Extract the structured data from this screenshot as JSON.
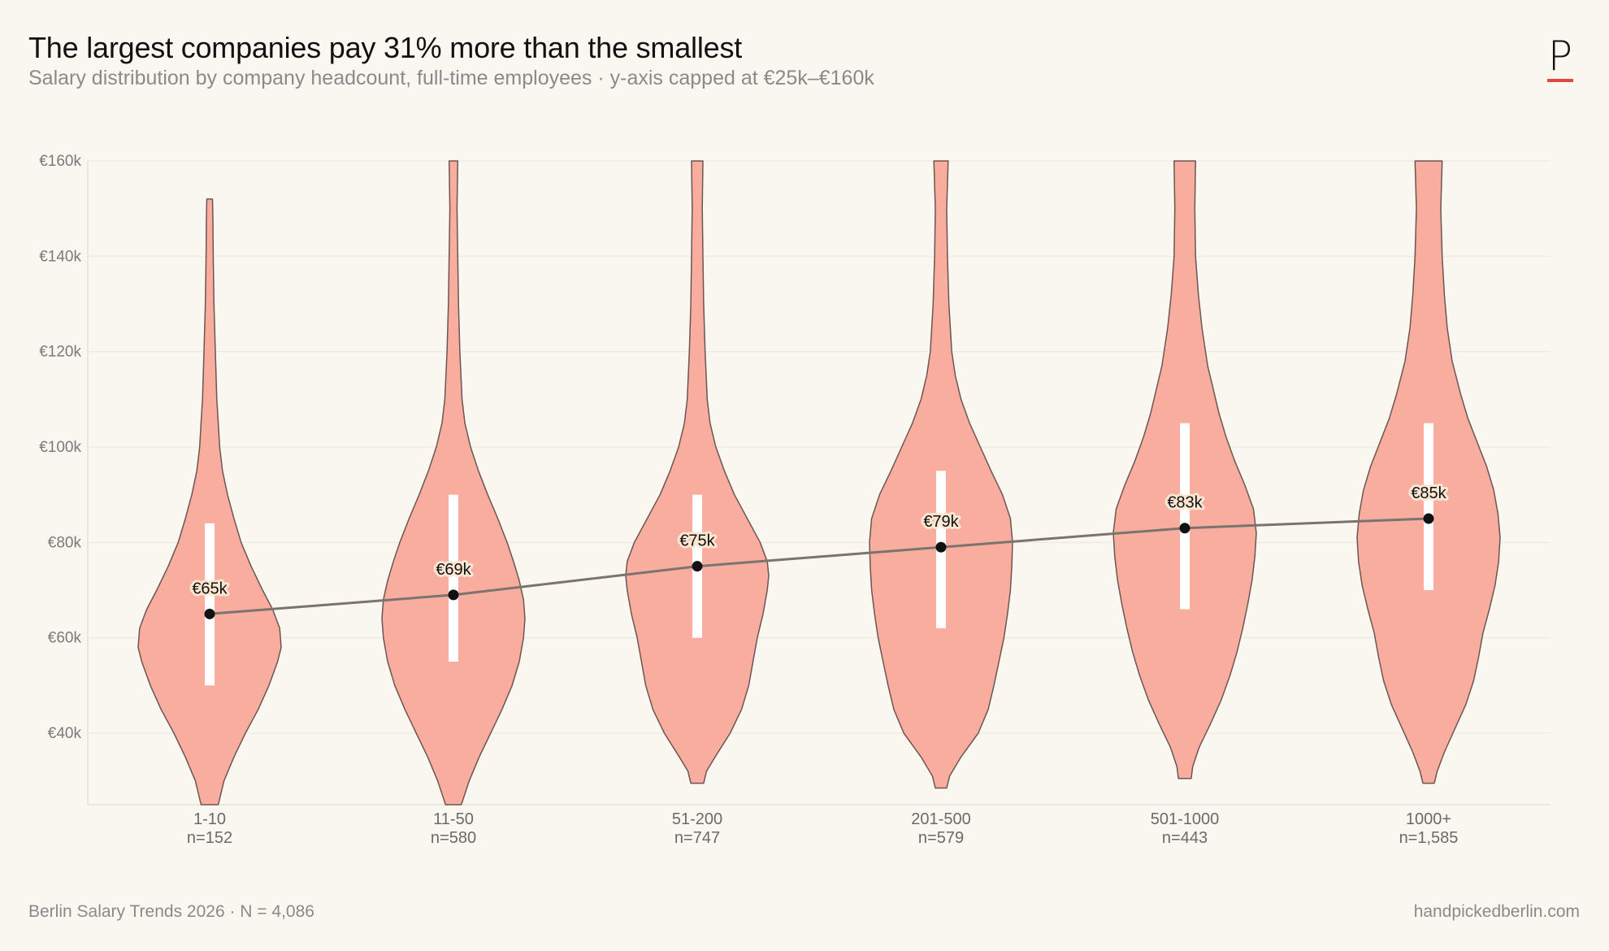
{
  "header": {
    "title": "The largest companies pay 31% more than the smallest",
    "subtitle": "Salary distribution by company headcount, full-time employees  ·  y-axis capped at €25k–€160k",
    "logo_letter": "P"
  },
  "footer": {
    "left": "Berlin Salary Trends 2026  ·  N = 4,086",
    "right": "handpickedberlin.com"
  },
  "colors": {
    "background": "#faf7f1",
    "violin_fill": "#f9ad9f",
    "violin_stroke": "#6b5652",
    "iqr_bar": "#ffffff",
    "median_dot": "#111111",
    "trend_line": "#7a7370",
    "grid": "#ebe6de",
    "accent": "#e04a3a"
  },
  "chart_data": {
    "type": "violin",
    "ylim": [
      25,
      160
    ],
    "ytick_values": [
      40,
      60,
      80,
      100,
      120,
      140,
      160
    ],
    "ytick_labels": [
      "€40k",
      "€60k",
      "€80k",
      "€100k",
      "€120k",
      "€140k",
      "€160k"
    ],
    "grid": true,
    "categories": [
      {
        "name": "1-10",
        "n_label": "n=152",
        "median": 65,
        "median_label": "€65k",
        "iqr": [
          50,
          84
        ],
        "profile": [
          [
            25,
            0.12
          ],
          [
            30,
            0.2
          ],
          [
            35,
            0.34
          ],
          [
            40,
            0.5
          ],
          [
            45,
            0.68
          ],
          [
            50,
            0.83
          ],
          [
            55,
            0.95
          ],
          [
            58,
            1.0
          ],
          [
            62,
            0.98
          ],
          [
            66,
            0.88
          ],
          [
            70,
            0.74
          ],
          [
            75,
            0.58
          ],
          [
            80,
            0.44
          ],
          [
            85,
            0.34
          ],
          [
            90,
            0.25
          ],
          [
            95,
            0.18
          ],
          [
            100,
            0.14
          ],
          [
            105,
            0.12
          ],
          [
            110,
            0.1
          ],
          [
            120,
            0.08
          ],
          [
            130,
            0.06
          ],
          [
            140,
            0.05
          ],
          [
            148,
            0.045
          ],
          [
            152,
            0.04
          ]
        ]
      },
      {
        "name": "11-50",
        "n_label": "n=580",
        "median": 69,
        "median_label": "€69k",
        "iqr": [
          55,
          90
        ],
        "profile": [
          [
            25,
            0.11
          ],
          [
            30,
            0.22
          ],
          [
            35,
            0.36
          ],
          [
            40,
            0.52
          ],
          [
            45,
            0.68
          ],
          [
            50,
            0.82
          ],
          [
            55,
            0.92
          ],
          [
            60,
            0.98
          ],
          [
            64,
            1.0
          ],
          [
            68,
            0.98
          ],
          [
            72,
            0.92
          ],
          [
            76,
            0.84
          ],
          [
            80,
            0.75
          ],
          [
            85,
            0.62
          ],
          [
            90,
            0.48
          ],
          [
            95,
            0.35
          ],
          [
            100,
            0.24
          ],
          [
            105,
            0.16
          ],
          [
            110,
            0.12
          ],
          [
            120,
            0.09
          ],
          [
            130,
            0.07
          ],
          [
            140,
            0.06
          ],
          [
            150,
            0.05
          ],
          [
            160,
            0.06
          ]
        ]
      },
      {
        "name": "51-200",
        "n_label": "n=747",
        "median": 75,
        "median_label": "€75k",
        "iqr": [
          60,
          90
        ],
        "profile": [
          [
            29.5,
            0.09
          ],
          [
            32,
            0.13
          ],
          [
            35,
            0.25
          ],
          [
            40,
            0.46
          ],
          [
            45,
            0.62
          ],
          [
            50,
            0.72
          ],
          [
            55,
            0.78
          ],
          [
            60,
            0.84
          ],
          [
            65,
            0.92
          ],
          [
            70,
            0.98
          ],
          [
            73,
            1.0
          ],
          [
            76,
            0.98
          ],
          [
            80,
            0.88
          ],
          [
            85,
            0.7
          ],
          [
            90,
            0.52
          ],
          [
            95,
            0.38
          ],
          [
            100,
            0.26
          ],
          [
            105,
            0.18
          ],
          [
            110,
            0.14
          ],
          [
            120,
            0.11
          ],
          [
            130,
            0.09
          ],
          [
            140,
            0.08
          ],
          [
            150,
            0.07
          ],
          [
            160,
            0.08
          ]
        ]
      },
      {
        "name": "201-500",
        "n_label": "n=579",
        "median": 79,
        "median_label": "€79k",
        "iqr": [
          62,
          95
        ],
        "profile": [
          [
            28.5,
            0.08
          ],
          [
            31,
            0.12
          ],
          [
            35,
            0.28
          ],
          [
            40,
            0.52
          ],
          [
            45,
            0.66
          ],
          [
            50,
            0.74
          ],
          [
            55,
            0.81
          ],
          [
            60,
            0.88
          ],
          [
            65,
            0.93
          ],
          [
            70,
            0.97
          ],
          [
            75,
            0.99
          ],
          [
            80,
            1.0
          ],
          [
            85,
            0.97
          ],
          [
            90,
            0.86
          ],
          [
            95,
            0.7
          ],
          [
            100,
            0.55
          ],
          [
            105,
            0.4
          ],
          [
            110,
            0.28
          ],
          [
            115,
            0.2
          ],
          [
            120,
            0.15
          ],
          [
            130,
            0.11
          ],
          [
            140,
            0.09
          ],
          [
            150,
            0.08
          ],
          [
            160,
            0.1
          ]
        ]
      },
      {
        "name": "501-1000",
        "n_label": "n=443",
        "median": 83,
        "median_label": "€83k",
        "iqr": [
          66,
          105
        ],
        "profile": [
          [
            30.5,
            0.09
          ],
          [
            33,
            0.11
          ],
          [
            37,
            0.2
          ],
          [
            42,
            0.36
          ],
          [
            47,
            0.51
          ],
          [
            52,
            0.63
          ],
          [
            57,
            0.73
          ],
          [
            62,
            0.81
          ],
          [
            67,
            0.88
          ],
          [
            72,
            0.94
          ],
          [
            77,
            0.98
          ],
          [
            82,
            1.0
          ],
          [
            87,
            0.96
          ],
          [
            92,
            0.84
          ],
          [
            97,
            0.7
          ],
          [
            102,
            0.58
          ],
          [
            107,
            0.48
          ],
          [
            112,
            0.4
          ],
          [
            117,
            0.32
          ],
          [
            125,
            0.24
          ],
          [
            132,
            0.19
          ],
          [
            140,
            0.15
          ],
          [
            150,
            0.14
          ],
          [
            160,
            0.15
          ]
        ]
      },
      {
        "name": "1000+",
        "n_label": "n=1,585",
        "median": 85,
        "median_label": "€85k",
        "iqr": [
          70,
          105
        ],
        "profile": [
          [
            29.5,
            0.08
          ],
          [
            32,
            0.12
          ],
          [
            36,
            0.22
          ],
          [
            41,
            0.37
          ],
          [
            46,
            0.52
          ],
          [
            51,
            0.63
          ],
          [
            56,
            0.7
          ],
          [
            61,
            0.76
          ],
          [
            66,
            0.85
          ],
          [
            71,
            0.93
          ],
          [
            76,
            0.98
          ],
          [
            81,
            1.0
          ],
          [
            86,
            0.97
          ],
          [
            91,
            0.91
          ],
          [
            96,
            0.81
          ],
          [
            101,
            0.68
          ],
          [
            106,
            0.55
          ],
          [
            111,
            0.45
          ],
          [
            118,
            0.33
          ],
          [
            125,
            0.26
          ],
          [
            132,
            0.22
          ],
          [
            140,
            0.19
          ],
          [
            150,
            0.17
          ],
          [
            160,
            0.19
          ]
        ]
      }
    ]
  }
}
